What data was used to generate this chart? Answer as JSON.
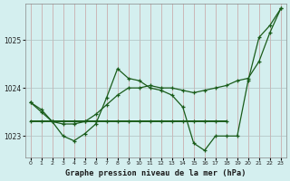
{
  "title": "Graphe pression niveau de la mer (hPa)",
  "bg_color": "#d4efef",
  "grid_color": "#b0c8c8",
  "line_color": "#1a5c1a",
  "hours": [
    0,
    1,
    2,
    3,
    4,
    5,
    6,
    7,
    8,
    9,
    10,
    11,
    12,
    13,
    14,
    15,
    16,
    17,
    18,
    19,
    20,
    21,
    22,
    23
  ],
  "series1": [
    1023.7,
    1023.55,
    1023.3,
    1023.0,
    1022.9,
    1023.05,
    1023.25,
    1023.8,
    1024.4,
    1024.2,
    1024.15,
    1024.0,
    1023.95,
    1023.85,
    1023.6,
    1022.85,
    1022.7,
    1023.0,
    1023.0,
    1023.0,
    1024.15,
    1025.05,
    1025.3,
    1025.65
  ],
  "series2_x": [
    0,
    1,
    2,
    3,
    4,
    5,
    6,
    7,
    8,
    9,
    10,
    11,
    12,
    13,
    14,
    15,
    16,
    17,
    18
  ],
  "series2_y": [
    1023.3,
    1023.3,
    1023.3,
    1023.3,
    1023.3,
    1023.3,
    1023.3,
    1023.3,
    1023.3,
    1023.3,
    1023.3,
    1023.3,
    1023.3,
    1023.3,
    1023.3,
    1023.3,
    1023.3,
    1023.3,
    1023.3
  ],
  "series3": [
    1023.7,
    1023.5,
    1023.3,
    1023.25,
    1023.25,
    1023.3,
    1023.45,
    1023.65,
    1023.85,
    1024.0,
    1024.0,
    1024.05,
    1024.0,
    1024.0,
    1023.95,
    1023.9,
    1023.95,
    1024.0,
    1024.05,
    1024.15,
    1024.2,
    1024.55,
    1025.15,
    1025.65
  ],
  "ylim": [
    1022.55,
    1025.75
  ],
  "yticks": [
    1023.0,
    1024.0,
    1025.0
  ],
  "title_fontsize": 6.2,
  "xtick_fontsize": 4.5,
  "ytick_fontsize": 5.5
}
